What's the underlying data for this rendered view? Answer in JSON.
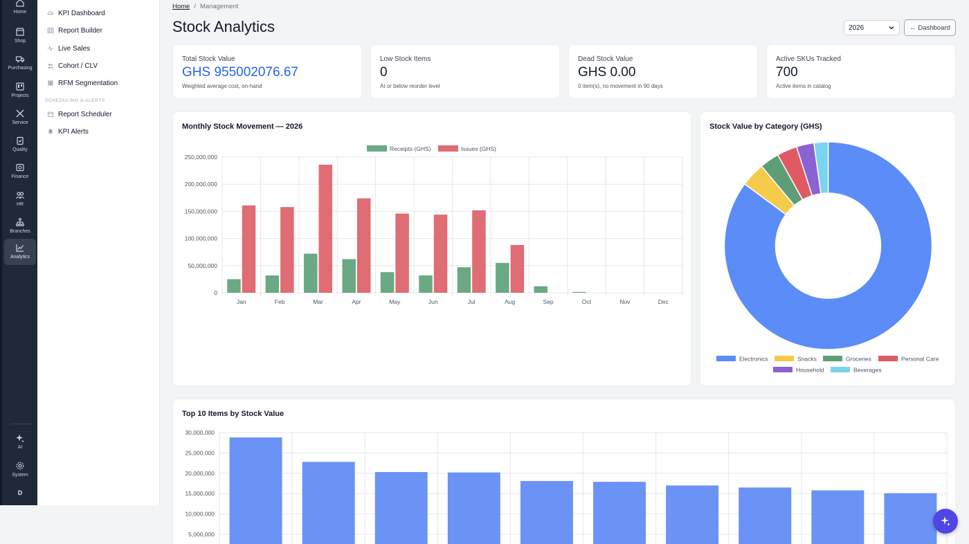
{
  "rail": {
    "items": [
      {
        "label": "Home",
        "icon": "home-icon"
      },
      {
        "label": "Shop",
        "icon": "shop-icon"
      },
      {
        "label": "Purchasing",
        "icon": "truck-icon"
      },
      {
        "label": "Projects",
        "icon": "projects-icon"
      },
      {
        "label": "Service",
        "icon": "tools-icon"
      },
      {
        "label": "Quality",
        "icon": "clipboard-check-icon"
      },
      {
        "label": "Finance",
        "icon": "finance-icon"
      },
      {
        "label": "HR",
        "icon": "people-icon"
      },
      {
        "label": "Branches",
        "icon": "branches-icon"
      },
      {
        "label": "Analytics",
        "icon": "chart-line-icon"
      }
    ],
    "bottom": [
      {
        "label": "AI",
        "icon": "sparkle-icon"
      },
      {
        "label": "System",
        "icon": "gear-icon"
      }
    ],
    "user_initial": "D"
  },
  "sidebar": {
    "items": [
      {
        "label": "KPI Dashboard",
        "icon": "gauge-icon"
      },
      {
        "label": "Report Builder",
        "icon": "table-icon"
      },
      {
        "label": "Live Sales",
        "icon": "pulse-icon"
      },
      {
        "label": "Cohort / CLV",
        "icon": "users-icon"
      },
      {
        "label": "RFM Segmentation",
        "icon": "grid-icon"
      }
    ],
    "section_label": "Scheduling & Alerts",
    "section_items": [
      {
        "label": "Report Scheduler",
        "icon": "calendar-icon"
      },
      {
        "label": "KPI Alerts",
        "icon": "bell-icon"
      }
    ]
  },
  "breadcrumb": {
    "home": "Home",
    "separator": "/",
    "current": "Management"
  },
  "page": {
    "title": "Stock Analytics",
    "year_select": "2026",
    "dashboard_button": "← Dashboard"
  },
  "kpis": [
    {
      "label": "Total Stock Value",
      "value": "GHS 955002076.67",
      "sub": "Weighted average cost, on-hand"
    },
    {
      "label": "Low Stock Items",
      "value": "0",
      "sub": "At or below reorder level"
    },
    {
      "label": "Dead Stock Value",
      "value": "GHS 0.00",
      "sub": "0 item(s), no movement in 90 days"
    },
    {
      "label": "Active SKUs Tracked",
      "value": "700",
      "sub": "Active items in catalog"
    }
  ],
  "colors": {
    "receipts": "#6aa983",
    "issues": "#e06c74",
    "top10": "#6b93f5",
    "accent_blue": "#2563eb",
    "pie": [
      "#5b8cf7",
      "#f5cb4c",
      "#5d9e76",
      "#e05a64",
      "#8b62d1",
      "#7cd3f0"
    ]
  },
  "chart_data": [
    {
      "type": "bar",
      "title": "Monthly Stock Movement — 2026",
      "categories": [
        "Jan",
        "Feb",
        "Mar",
        "Apr",
        "May",
        "Jun",
        "Jul",
        "Aug",
        "Sep",
        "Oct",
        "Nov",
        "Dec"
      ],
      "series": [
        {
          "name": "Receipts (GHS)",
          "values": [
            25000000,
            32000000,
            72000000,
            62000000,
            38000000,
            32000000,
            47000000,
            55000000,
            12000000,
            1500000,
            0,
            0
          ]
        },
        {
          "name": "Issues (GHS)",
          "values": [
            161000000,
            158000000,
            236000000,
            174000000,
            146000000,
            144000000,
            152000000,
            88000000,
            0,
            0,
            0,
            0
          ]
        }
      ],
      "y_ticks": [
        "0",
        "50,000,000",
        "100,000,000",
        "150,000,000",
        "200,000,000",
        "250,000,000"
      ],
      "ylim": [
        0,
        250000000
      ],
      "legend": "top",
      "grid": true
    },
    {
      "type": "pie",
      "title": "Stock Value by Category (GHS)",
      "categories": [
        "Electronics",
        "Snacks",
        "Groceries",
        "Personal Care",
        "Household",
        "Beverages"
      ],
      "values": [
        813000000,
        36000000,
        29000000,
        30000000,
        26000000,
        21000000
      ],
      "legend": "bottom"
    },
    {
      "type": "bar",
      "title": "Top 10 Items by Stock Value",
      "values": [
        28800000,
        22800000,
        20300000,
        20200000,
        18100000,
        17900000,
        17000000,
        16500000,
        15800000,
        15100000
      ],
      "y_ticks": [
        "5,000,000",
        "10,000,000",
        "15,000,000",
        "20,000,000",
        "25,000,000",
        "30,000,000"
      ],
      "ylim": [
        0,
        30000000
      ],
      "grid": true
    }
  ]
}
